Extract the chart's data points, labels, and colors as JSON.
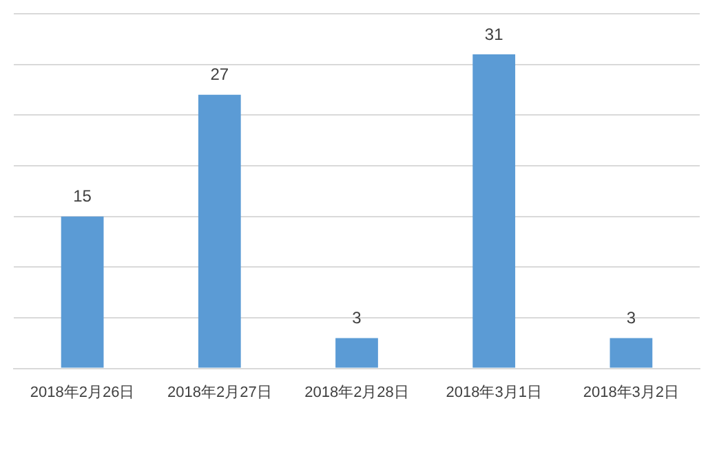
{
  "chart_data": {
    "type": "bar",
    "categories": [
      "2018年2月26日",
      "2018年2月27日",
      "2018年2月28日",
      "2018年3月1日",
      "2018年3月2日"
    ],
    "values": [
      15,
      27,
      3,
      31,
      3
    ],
    "color": "#5b9bd5",
    "ylim": [
      0,
      35
    ],
    "yticks": [
      0,
      5,
      10,
      15,
      20,
      25,
      30,
      35
    ],
    "grid": "y",
    "tick_labels": "x",
    "data_labels": true,
    "legend": false
  }
}
